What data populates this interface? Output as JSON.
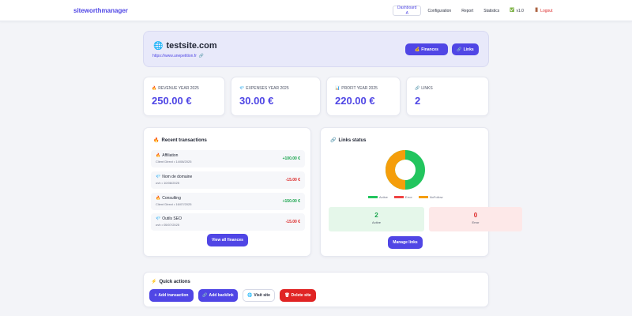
{
  "brand": "siteworthmanager",
  "nav": {
    "items": [
      {
        "label": "Dashboard",
        "sub": "A"
      },
      {
        "label": "Configuration"
      },
      {
        "label": "Report"
      },
      {
        "label": "Statistics"
      },
      {
        "label": "v1.0"
      },
      {
        "label": "Logout"
      }
    ]
  },
  "site": {
    "title": "testsite.com",
    "url": "https://www.unepetition.fr",
    "buttons": {
      "finances": "Finances",
      "links": "Links"
    }
  },
  "stats": [
    {
      "label": "REVENUE YEAR 2025",
      "value": "250.00 €"
    },
    {
      "label": "EXPENSES YEAR 2025",
      "value": "30.00 €"
    },
    {
      "label": "PROFIT YEAR 2025",
      "value": "220.00 €"
    },
    {
      "label": "LINKS",
      "value": "2"
    }
  ],
  "transactions": {
    "title": "Recent transactions",
    "items": [
      {
        "name": "Affiliation",
        "meta": "Client Direct • 14/08/2025",
        "amount": "+100.00 €",
        "type": "pos"
      },
      {
        "name": "Nom de domaine",
        "meta": "ovh • 10/08/2025",
        "amount": "-15.00 €",
        "type": "neg"
      },
      {
        "name": "Consulting",
        "meta": "Client Direct • 16/07/2025",
        "amount": "+150.00 €",
        "type": "pos"
      },
      {
        "name": "Outils SEO",
        "meta": "ovh • 05/07/2025",
        "amount": "-15.00 €",
        "type": "neg"
      }
    ],
    "view_all": "View all finances"
  },
  "links_status": {
    "title": "Links status",
    "legend": [
      "Active",
      "Error",
      "NoFollow"
    ],
    "colors": {
      "active": "#22c55e",
      "error": "#ef4444",
      "nofollow": "#f59e0b"
    },
    "active_count": "2",
    "active_label": "Active",
    "error_count": "0",
    "error_label": "Error",
    "manage": "Manage links"
  },
  "quick_actions": {
    "title": "Quick actions",
    "add_transaction": "Add transaction",
    "add_backlink": "Add backlink",
    "visit_site": "Visit site",
    "delete_site": "Delete site"
  }
}
